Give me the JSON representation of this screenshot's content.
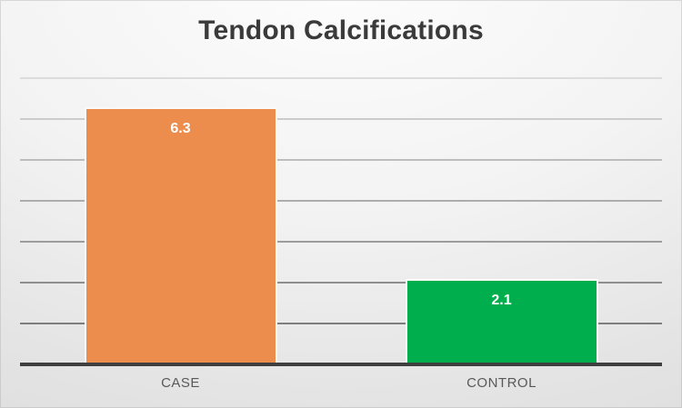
{
  "chart_data": {
    "type": "bar",
    "title": "Tendon Calcifications",
    "categories": [
      "CASE",
      "CONTROL"
    ],
    "values": [
      6.3,
      2.1
    ],
    "value_labels": [
      "6.3",
      "2.1"
    ],
    "series": [
      {
        "name": "CASE",
        "value": 6.3,
        "color": "#EC8D4E"
      },
      {
        "name": "CONTROL",
        "value": 2.1,
        "color": "#00AE4E"
      }
    ],
    "bar_colors": [
      "#EC8D4E",
      "#00AE4E"
    ],
    "xlabel": "",
    "ylabel": "",
    "ylim": [
      0,
      7.5
    ],
    "y_gridlines": [
      1,
      2,
      3,
      4,
      5,
      6,
      7
    ],
    "grid": "horizontal",
    "legend": "none",
    "colors": {
      "title_color": "#3A3A3A",
      "axis_line_color": "#3F3F3F",
      "category_label_color": "#595959",
      "value_label_color": "#FFFFFF",
      "bar_border_color": "#FAFAFA",
      "gridline_dark": "#7E7E7E",
      "gridline_light": "#DCDCDC"
    }
  }
}
